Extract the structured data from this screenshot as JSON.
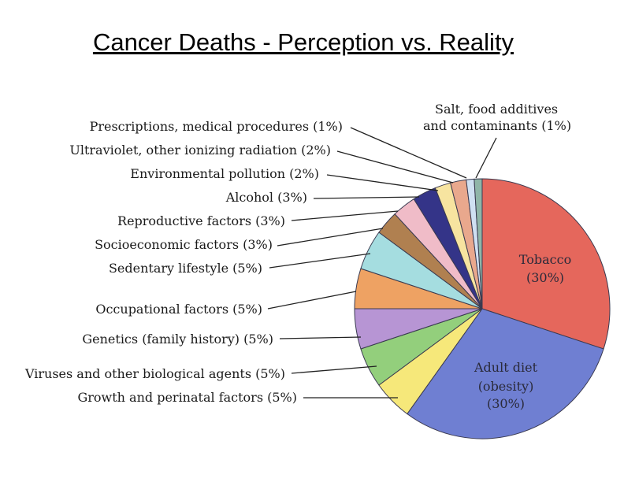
{
  "title": "Cancer Deaths - Perception vs. Reality",
  "chart_data": {
    "type": "pie",
    "unit": "%",
    "slices": [
      {
        "label": "Tobacco",
        "value": 30,
        "text": "Tobacco (30%)",
        "color": "#e5675c"
      },
      {
        "label": "Adult diet (obesity)",
        "value": 30,
        "text": "Adult diet (obesity) (30%)",
        "color": "#6f7fd2"
      },
      {
        "label": "Growth and perinatal factors",
        "value": 5,
        "text": "Growth and perinatal factors (5%)",
        "color": "#f6e87a"
      },
      {
        "label": "Viruses and other biological agents",
        "value": 5,
        "text": "Viruses and other biological agents (5%)",
        "color": "#93cf7c"
      },
      {
        "label": "Genetics (family history)",
        "value": 5,
        "text": "Genetics (family history) (5%)",
        "color": "#b795d4"
      },
      {
        "label": "Occupational factors",
        "value": 5,
        "text": "Occupational factors (5%)",
        "color": "#eea263"
      },
      {
        "label": "Sedentary lifestyle",
        "value": 5,
        "text": "Sedentary lifestyle (5%)",
        "color": "#a5dde0"
      },
      {
        "label": "Socioeconomic factors",
        "value": 3,
        "text": "Socioeconomic factors (3%)",
        "color": "#b08050"
      },
      {
        "label": "Reproductive factors",
        "value": 3,
        "text": "Reproductive factors (3%)",
        "color": "#f0bcc8"
      },
      {
        "label": "Alcohol",
        "value": 3,
        "text": "Alcohol (3%)",
        "color": "#343488"
      },
      {
        "label": "Environmental pollution",
        "value": 2,
        "text": "Environmental pollution (2%)",
        "color": "#f7e4a0"
      },
      {
        "label": "Ultraviolet, other ionizing radiation",
        "value": 2,
        "text": "Ultraviolet, other ionizing radiation (2%)",
        "color": "#e9a88d"
      },
      {
        "label": "Prescriptions, medical procedures",
        "value": 1,
        "text": "Prescriptions, medical procedures (1%)",
        "color": "#cfe0f2"
      },
      {
        "label": "Salt, food additives and contaminants",
        "value": 1,
        "text": "Salt, food additives and contaminants (1%)",
        "color": "#8fb5a8"
      }
    ],
    "labels": {
      "tobacco_1": "Tobacco",
      "tobacco_2": "(30%)",
      "diet_1": "Adult diet",
      "diet_2": "(obesity)",
      "diet_3": "(30%)",
      "growth": "Growth and perinatal factors (5%)",
      "viruses": "Viruses and other biological agents (5%)",
      "genetics": "Genetics (family history) (5%)",
      "occupational": "Occupational factors (5%)",
      "sedentary": "Sedentary lifestyle (5%)",
      "socioeconomic": "Socioeconomic factors (3%)",
      "reproductive": "Reproductive factors (3%)",
      "alcohol": "Alcohol (3%)",
      "environmental": "Environmental pollution (2%)",
      "ultraviolet": "Ultraviolet, other ionizing radiation (2%)",
      "prescriptions": "Prescriptions, medical procedures (1%)",
      "salt_1": "Salt, food additives",
      "salt_2": "and contaminants (1%)"
    }
  }
}
